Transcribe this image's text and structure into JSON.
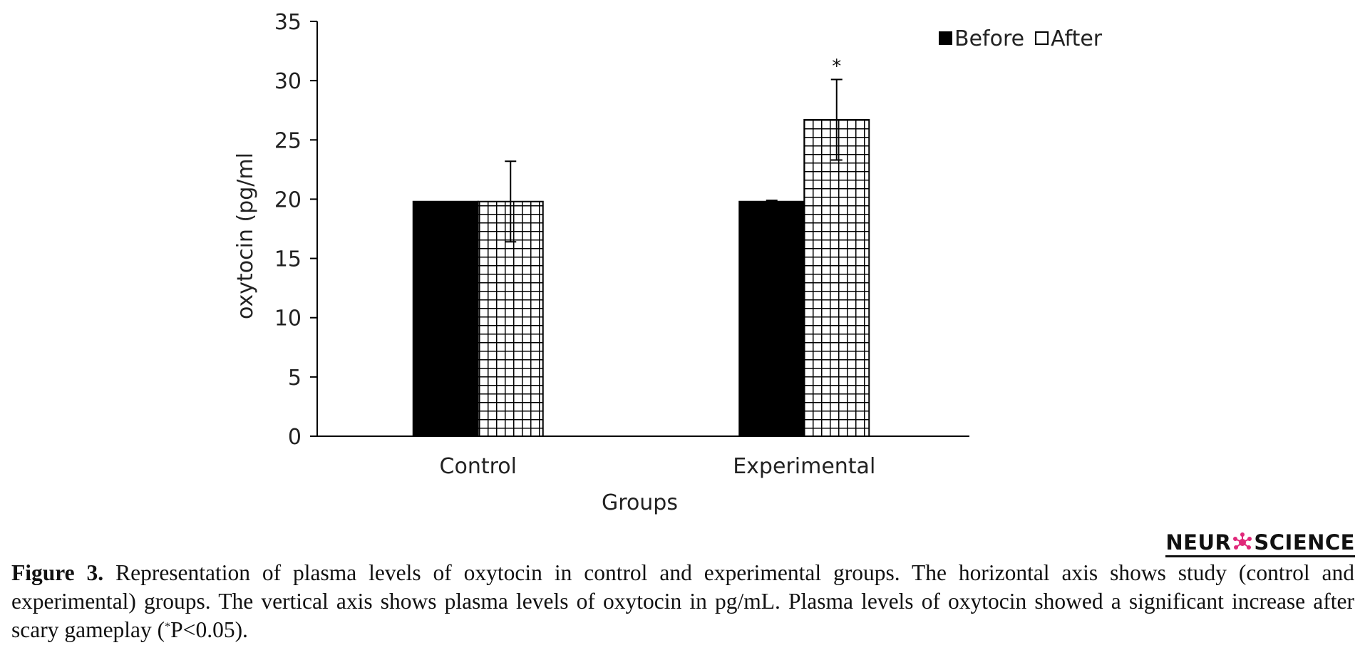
{
  "chart_data": {
    "type": "bar",
    "categories": [
      "Control",
      "Experimental"
    ],
    "series": [
      {
        "name": "Before",
        "values": [
          19.8,
          19.8
        ],
        "errors": [
          null,
          0.1
        ],
        "fill": "solid-black"
      },
      {
        "name": "After",
        "values": [
          19.8,
          26.7
        ],
        "errors": [
          3.4,
          3.4
        ],
        "fill": "grid-hatch"
      }
    ],
    "title": "",
    "xlabel": "Groups",
    "ylabel": "oxytocin (pg/ml",
    "ylim": [
      0,
      35
    ],
    "yticks": [
      "0",
      "5",
      "10",
      "15",
      "20",
      "25",
      "30",
      "35"
    ],
    "grid": false,
    "legend_position": "top-right",
    "annotations": [
      {
        "series": "After",
        "category": "Experimental",
        "text": "*"
      }
    ]
  },
  "brand": {
    "left": "NEUR",
    "right": "SCIENCE"
  },
  "caption": {
    "label": "Figure 3.",
    "text_before_sup": " Representation of plasma levels of oxytocin in control and experimental groups. The horizontal axis shows study (control and experimental) groups. The vertical axis shows plasma levels of oxytocin in pg/mL. Plasma levels of oxytocin showed a significant increase after scary gameplay (",
    "sup": "*",
    "text_after_sup": "P<0.05)."
  },
  "colors": {
    "before_fill": "#000000",
    "after_fill": "#ffffff",
    "axis": "#000000",
    "brand_mark": "#e0287a"
  },
  "icons": {
    "brand_mark": "neuron-icon"
  }
}
